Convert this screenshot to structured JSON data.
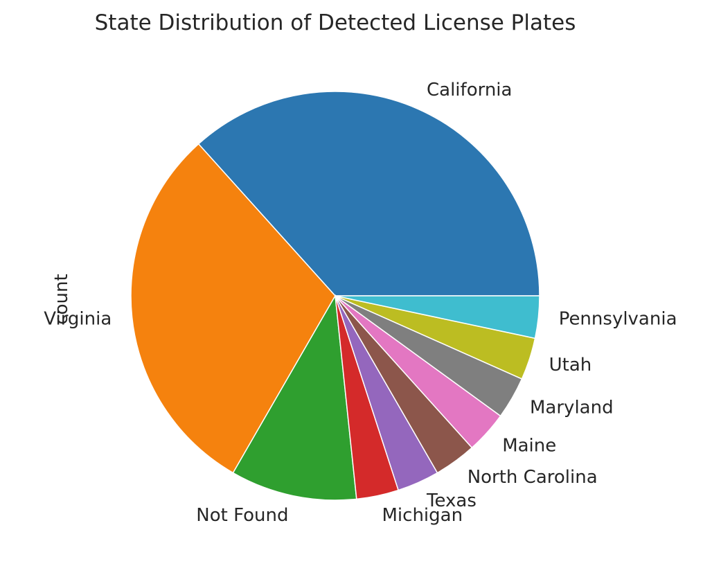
{
  "chart_data": {
    "type": "pie",
    "title": "State Distribution of Detected License Plates",
    "ylabel": "count",
    "start_angle_deg": 0,
    "direction": "counterclockwise",
    "labels": [
      "California",
      "Virginia",
      "Not Found",
      "Michigan",
      "Texas",
      "North Carolina",
      "Maine",
      "Maryland",
      "Utah",
      "Pennsylvania"
    ],
    "values": [
      11,
      9,
      3,
      1,
      1,
      1,
      1,
      1,
      1,
      1
    ],
    "colors": [
      "#2c77b1",
      "#f5820e",
      "#2f9f2f",
      "#d42a2a",
      "#9467bd",
      "#8c564b",
      "#e377c2",
      "#7f7f7f",
      "#bcbd22",
      "#3fbdcf"
    ]
  }
}
